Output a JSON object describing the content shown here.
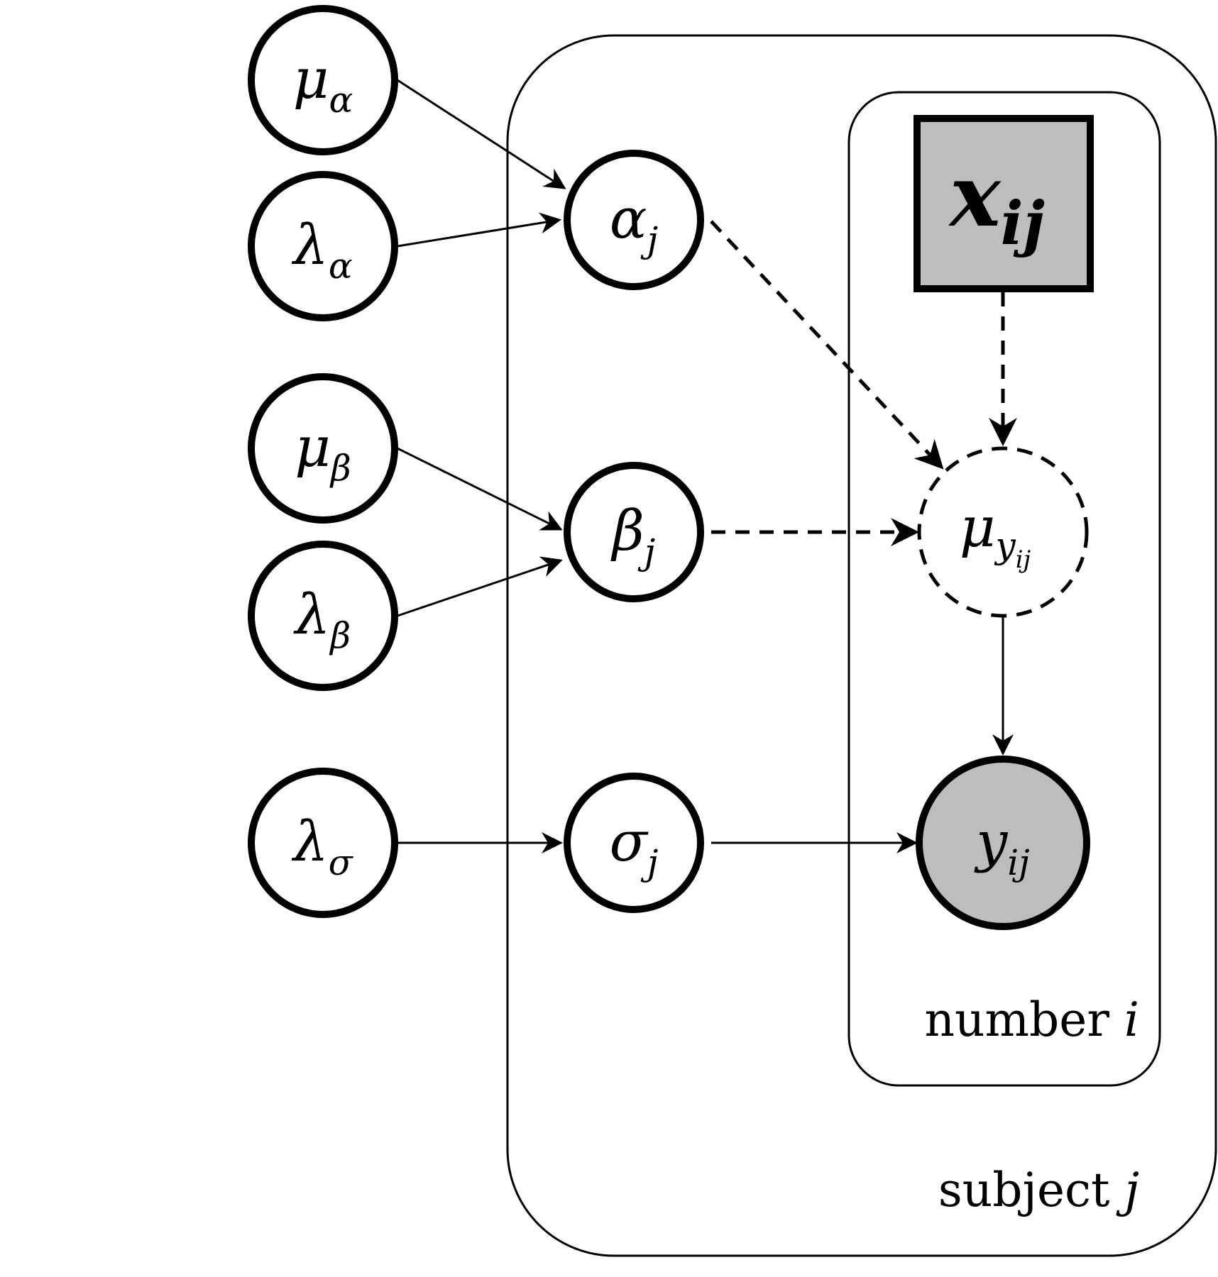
{
  "diagram": {
    "nodes": {
      "mu_alpha": {
        "main": "μ",
        "sub": "α"
      },
      "lambda_alpha": {
        "main": "λ",
        "sub": "α"
      },
      "mu_beta": {
        "main": "μ",
        "sub": "β"
      },
      "lambda_beta": {
        "main": "λ",
        "sub": "β"
      },
      "lambda_sigma": {
        "main": "λ",
        "sub": "σ"
      },
      "alpha_j": {
        "main": "α",
        "sub": "j"
      },
      "beta_j": {
        "main": "β",
        "sub": "j"
      },
      "sigma_j": {
        "main": "σ",
        "sub": "j"
      },
      "x_ij": {
        "main": "x",
        "sub": "ij"
      },
      "mu_y_ij": {
        "main": "μ",
        "sub": "y",
        "subsub": "ij"
      },
      "y_ij": {
        "main": "y",
        "sub": "ij"
      }
    },
    "plates": {
      "outer": {
        "label": "subject",
        "var": "j"
      },
      "inner": {
        "label": "number",
        "var": "i"
      }
    },
    "colors": {
      "observed_fill": "#bdbdbd",
      "stroke": "#000000"
    }
  }
}
